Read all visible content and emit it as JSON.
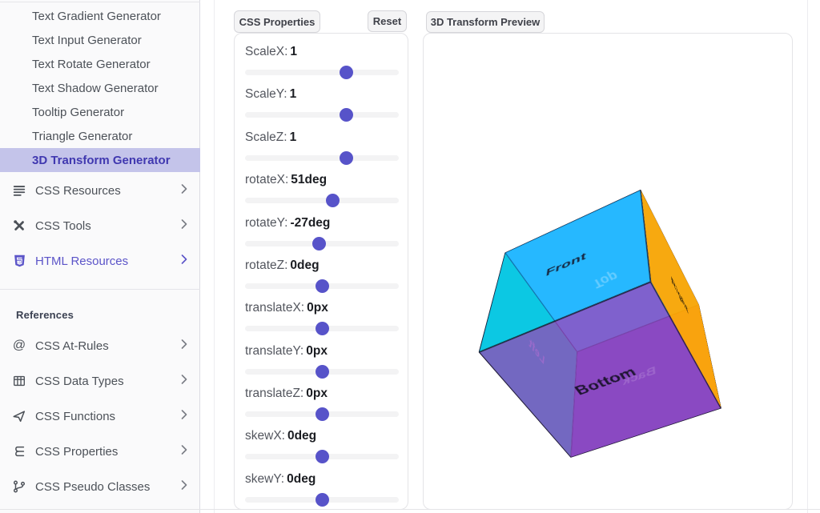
{
  "colors": {
    "accent_indigo": "#5b54c8",
    "active_item_bg": "#c4c4ea",
    "active_item_text": "#4038b0",
    "slider_thumb": "#5753c9",
    "tab_bg": "#f4f4f5",
    "panel_border": "#e4e4e7"
  },
  "sidebar": {
    "generators": [
      "Text Gradient Generator",
      "Text Input Generator",
      "Text Rotate Generator",
      "Text Shadow Generator",
      "Tooltip Generator",
      "Triangle Generator",
      "3D Transform Generator"
    ],
    "active_generator": "3D Transform Generator",
    "active_index": 6,
    "sections": [
      {
        "icon": "lines-icon",
        "label": "CSS Resources"
      },
      {
        "icon": "tools-icon",
        "label": "CSS Tools"
      },
      {
        "icon": "html5-icon",
        "label": "HTML Resources"
      }
    ],
    "references_heading": "References",
    "references": [
      {
        "icon": "at-icon",
        "label": "CSS At-Rules"
      },
      {
        "icon": "table-icon",
        "label": "CSS Data Types"
      },
      {
        "icon": "functions-icon",
        "label": "CSS Functions"
      },
      {
        "icon": "css3-icon",
        "label": "CSS Properties"
      },
      {
        "icon": "branch-icon",
        "label": "CSS Pseudo Classes"
      }
    ]
  },
  "properties_panel": {
    "title": "CSS Properties",
    "reset_label": "Reset",
    "sliders": [
      {
        "label": "ScaleX:",
        "value": "1",
        "pos_pct": 66
      },
      {
        "label": "ScaleY:",
        "value": "1",
        "pos_pct": 66
      },
      {
        "label": "ScaleZ:",
        "value": "1",
        "pos_pct": 66
      },
      {
        "label": "rotateX:",
        "value": "51deg",
        "pos_pct": 57
      },
      {
        "label": "rotateY:",
        "value": "-27deg",
        "pos_pct": 48
      },
      {
        "label": "rotateZ:",
        "value": "0deg",
        "pos_pct": 50
      },
      {
        "label": "translateX:",
        "value": "0px",
        "pos_pct": 50
      },
      {
        "label": "translateY:",
        "value": "0px",
        "pos_pct": 50
      },
      {
        "label": "translateZ:",
        "value": "0px",
        "pos_pct": 50
      },
      {
        "label": "skewX:",
        "value": "0deg",
        "pos_pct": 50
      },
      {
        "label": "skewY:",
        "value": "0deg",
        "pos_pct": 50
      }
    ]
  },
  "preview_panel": {
    "title": "3D Transform Preview",
    "cube": {
      "transform": "scaleX(1) scaleY(1) scaleZ(1) rotateX(51deg) rotateY(-27deg) rotateZ(0deg) translateX(0px) translateY(0px) translateZ(0px) skewX(0deg) skewY(0deg)",
      "faces": [
        {
          "side": "front",
          "label": "Front",
          "color": "rgba(0,170,255,0.55)",
          "label_color": "#16263f"
        },
        {
          "side": "back",
          "label": "Back",
          "color": "rgba(123,63,191,0.9)",
          "label_color": "rgba(255,255,255,0.85)"
        },
        {
          "side": "left",
          "label": "Left",
          "color": "rgba(0,235,185,0.9)",
          "label_color": "rgba(255,255,255,0.85)"
        },
        {
          "side": "right",
          "label": "Right",
          "color": "rgba(255,167,3,0.95)",
          "label_color": "#33230a"
        },
        {
          "side": "top",
          "label": "Top",
          "color": "rgba(64,196,255,0.9)",
          "label_color": "rgba(255,255,255,0.85)"
        },
        {
          "side": "bottom",
          "label": "Bottom",
          "color": "rgba(137,70,192,0.8)",
          "label_color": "#1d1430"
        }
      ]
    }
  }
}
